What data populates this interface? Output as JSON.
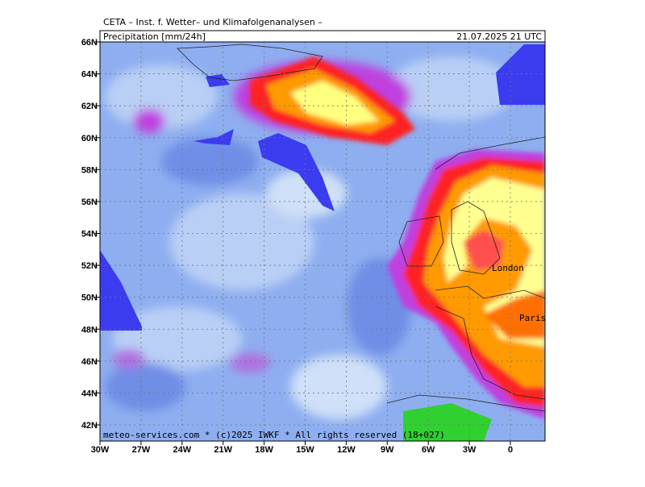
{
  "header": {
    "institute": "CETA – Inst. f. Wetter– und Klimafolgenanalysen –",
    "parameter": "Precipitation [mm/24h]",
    "valid_time": "21.07.2025 21 UTC"
  },
  "map": {
    "lat_labels": [
      "66N",
      "64N",
      "62N",
      "60N",
      "58N",
      "56N",
      "54N",
      "52N",
      "50N",
      "48N",
      "46N",
      "44N",
      "42N"
    ],
    "lon_labels": [
      "30W",
      "27W",
      "24W",
      "21W",
      "18W",
      "15W",
      "12W",
      "9W",
      "6W",
      "3W",
      "0"
    ],
    "cities": [
      "London",
      "Paris"
    ]
  },
  "footer": "meteo-services.com * (c)2025 IWKF * All rights reserved (18+027)"
}
